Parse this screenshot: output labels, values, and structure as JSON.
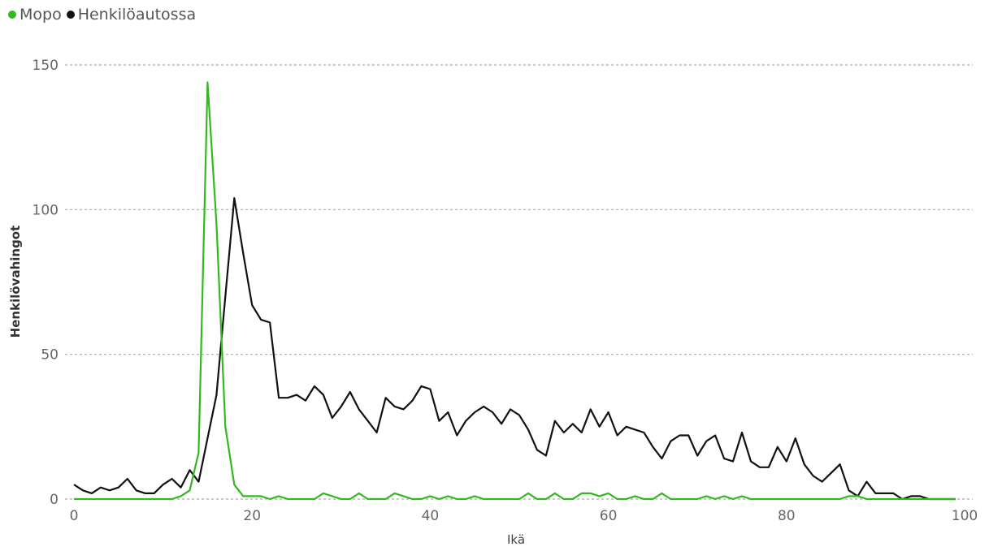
{
  "colors": {
    "Mopo": "#33b81f",
    "Henkiloautossa": "#111111",
    "grid": "#aaaaaa"
  },
  "legend": [
    {
      "label": "Mopo",
      "color": "#33b81f"
    },
    {
      "label": "Henkilöautossa",
      "color": "#111111"
    }
  ],
  "chart_data": {
    "type": "line",
    "title": "",
    "xlabel": "Ikä",
    "ylabel": "Henkilövahingot",
    "xlim": [
      0,
      100
    ],
    "ylim": [
      0,
      150
    ],
    "xticks": [
      0,
      20,
      40,
      60,
      80,
      100
    ],
    "yticks": [
      0,
      50,
      100,
      150
    ],
    "grid": "horizontal dashed",
    "legend_position": "top-left",
    "x": [
      0,
      1,
      2,
      3,
      4,
      5,
      6,
      7,
      8,
      9,
      10,
      11,
      12,
      13,
      14,
      15,
      16,
      17,
      18,
      19,
      20,
      21,
      22,
      23,
      24,
      25,
      26,
      27,
      28,
      29,
      30,
      31,
      32,
      33,
      34,
      35,
      36,
      37,
      38,
      39,
      40,
      41,
      42,
      43,
      44,
      45,
      46,
      47,
      48,
      49,
      50,
      51,
      52,
      53,
      54,
      55,
      56,
      57,
      58,
      59,
      60,
      61,
      62,
      63,
      64,
      65,
      66,
      67,
      68,
      69,
      70,
      71,
      72,
      73,
      74,
      75,
      76,
      77,
      78,
      79,
      80,
      81,
      82,
      83,
      84,
      85,
      86,
      87,
      88,
      89,
      90,
      91,
      92,
      93,
      94,
      95,
      96,
      97,
      98,
      99
    ],
    "series": [
      {
        "name": "Mopo",
        "values": [
          0,
          0,
          0,
          0,
          0,
          0,
          0,
          0,
          0,
          0,
          0,
          0,
          1,
          3,
          16,
          144,
          95,
          25,
          5,
          1,
          1,
          1,
          0,
          1,
          0,
          0,
          0,
          0,
          2,
          1,
          0,
          0,
          2,
          0,
          0,
          0,
          2,
          1,
          0,
          0,
          1,
          0,
          1,
          0,
          0,
          1,
          0,
          0,
          0,
          0,
          0,
          2,
          0,
          0,
          2,
          0,
          0,
          2,
          2,
          1,
          2,
          0,
          0,
          1,
          0,
          0,
          2,
          0,
          0,
          0,
          0,
          1,
          0,
          1,
          0,
          1,
          0,
          0,
          0,
          0,
          0,
          0,
          0,
          0,
          0,
          0,
          0,
          1,
          1,
          0,
          0,
          0,
          0,
          0,
          0,
          0,
          0,
          0,
          0,
          0
        ]
      },
      {
        "name": "Henkilöautossa",
        "values": [
          5,
          3,
          2,
          4,
          3,
          4,
          7,
          3,
          2,
          2,
          5,
          7,
          4,
          10,
          6,
          21,
          36,
          70,
          104,
          85,
          67,
          62,
          61,
          35,
          35,
          36,
          34,
          39,
          36,
          28,
          32,
          37,
          31,
          27,
          23,
          35,
          32,
          31,
          34,
          39,
          38,
          27,
          30,
          22,
          27,
          30,
          32,
          30,
          26,
          31,
          29,
          24,
          17,
          15,
          27,
          23,
          26,
          23,
          31,
          25,
          30,
          22,
          25,
          24,
          23,
          18,
          14,
          20,
          22,
          22,
          15,
          20,
          22,
          14,
          13,
          23,
          13,
          11,
          11,
          18,
          13,
          21,
          12,
          8,
          6,
          9,
          12,
          3,
          1,
          6,
          2,
          2,
          2,
          0,
          1,
          1,
          0,
          0,
          0,
          0
        ]
      }
    ]
  }
}
